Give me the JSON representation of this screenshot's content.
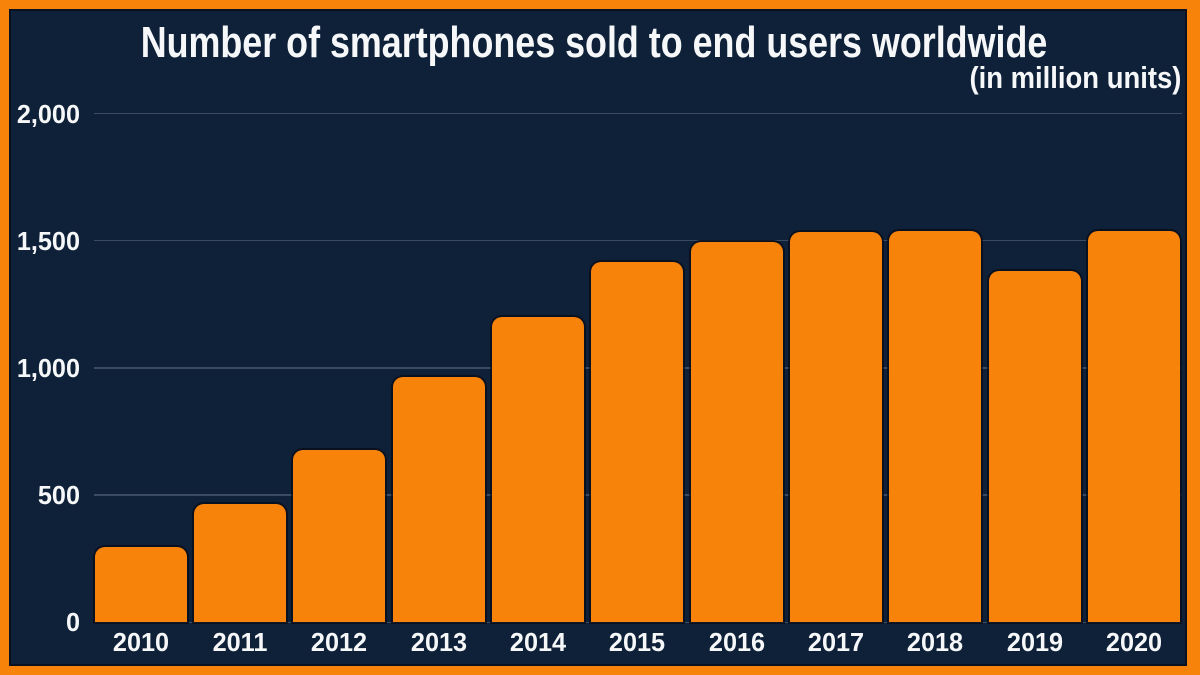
{
  "chart_data": {
    "type": "bar",
    "title": "Number of smartphones sold to end users worldwide",
    "subtitle": "(in million units)",
    "xlabel": "",
    "ylabel": "",
    "categories": [
      "2010",
      "2011",
      "2012",
      "2013",
      "2014",
      "2015",
      "2016",
      "2017",
      "2018",
      "2019",
      "2020"
    ],
    "values": [
      295,
      466,
      677,
      965,
      1200,
      1415,
      1495,
      1535,
      1540,
      1380,
      1537
    ],
    "ylim": [
      0,
      2000
    ],
    "yticks": [
      0,
      500,
      1000,
      1500,
      2000
    ],
    "ytick_labels": [
      "0",
      "500",
      "1,000",
      "1,500",
      "2,000"
    ],
    "grid": "horizontal",
    "legend": "none",
    "colors": {
      "bar": "#f8830a",
      "frame": "#f8830a",
      "background": "#0e2138",
      "text": "#f6f7f9",
      "gridline": "#55627c"
    }
  }
}
